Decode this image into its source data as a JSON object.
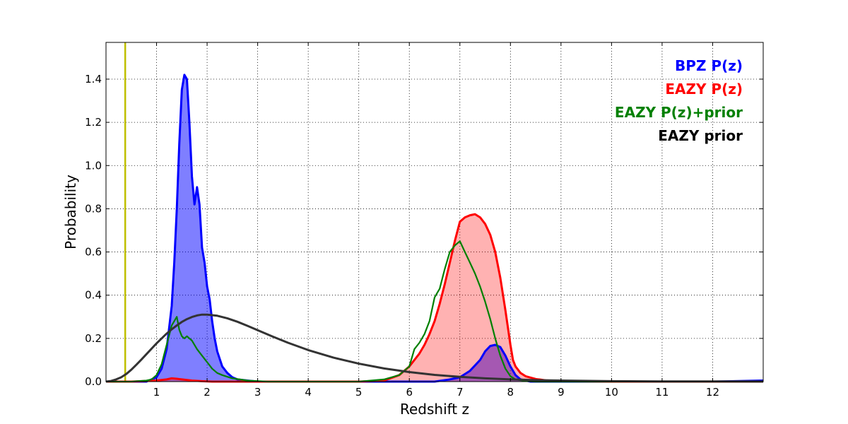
{
  "chart_data": {
    "type": "line",
    "xlabel": "Redshift z",
    "ylabel": "Probability",
    "xlim": [
      0,
      13
    ],
    "ylim": [
      0,
      1.57
    ],
    "grid": true,
    "grid_style": "dotted",
    "legend_placement": "top-right",
    "x_ticks": [
      1,
      2,
      3,
      4,
      5,
      6,
      7,
      8,
      9,
      10,
      11,
      12
    ],
    "x_tick_labels": [
      "1",
      "2",
      "3",
      "4",
      "5",
      "6",
      "7",
      "8",
      "9",
      "10",
      "11",
      "12"
    ],
    "y_ticks": [
      0.0,
      0.2,
      0.4,
      0.6,
      0.8,
      1.0,
      1.2,
      1.4
    ],
    "y_tick_labels": [
      "0.0",
      "0.2",
      "0.4",
      "0.6",
      "0.8",
      "1.0",
      "1.2",
      "1.4"
    ],
    "vertical_line": {
      "x": 0.38,
      "color": "#bfbf00"
    },
    "series": [
      {
        "name": "BPZ P(z)",
        "color": "#0000ff",
        "fill": "#0000ff",
        "fill_opacity": 0.5,
        "line_width": 3,
        "x": [
          0,
          0.8,
          1.0,
          1.1,
          1.2,
          1.3,
          1.35,
          1.4,
          1.45,
          1.5,
          1.55,
          1.6,
          1.65,
          1.7,
          1.75,
          1.8,
          1.85,
          1.9,
          1.95,
          2.0,
          2.05,
          2.1,
          2.15,
          2.2,
          2.3,
          2.4,
          2.5,
          2.6,
          2.8,
          3.0,
          4.0,
          5.0,
          6.0,
          6.5,
          6.8,
          7.0,
          7.2,
          7.4,
          7.5,
          7.6,
          7.7,
          7.8,
          7.9,
          8.0,
          8.1,
          8.2,
          8.4,
          9.0,
          11.0,
          12.0,
          13.0
        ],
        "y": [
          0,
          0.0,
          0.02,
          0.06,
          0.15,
          0.35,
          0.55,
          0.8,
          1.1,
          1.35,
          1.42,
          1.4,
          1.2,
          0.95,
          0.82,
          0.9,
          0.82,
          0.62,
          0.55,
          0.44,
          0.38,
          0.28,
          0.2,
          0.14,
          0.07,
          0.04,
          0.02,
          0.01,
          0.005,
          0,
          0,
          0,
          0.0,
          0.0,
          0.01,
          0.02,
          0.05,
          0.1,
          0.14,
          0.165,
          0.17,
          0.16,
          0.12,
          0.07,
          0.03,
          0.01,
          0.0,
          0,
          0,
          0,
          0.005
        ]
      },
      {
        "name": "EAZY P(z)",
        "color": "#ff0000",
        "fill": "#ff0000",
        "fill_opacity": 0.3,
        "line_width": 3,
        "x": [
          0,
          0.5,
          1.0,
          1.2,
          1.3,
          1.4,
          1.5,
          1.7,
          1.9,
          2.1,
          2.3,
          2.6,
          3.0,
          4.0,
          5.0,
          5.5,
          5.8,
          6.0,
          6.1,
          6.2,
          6.3,
          6.4,
          6.5,
          6.6,
          6.7,
          6.8,
          6.9,
          7.0,
          7.1,
          7.2,
          7.3,
          7.4,
          7.5,
          7.6,
          7.7,
          7.8,
          7.9,
          8.0,
          8.05,
          8.1,
          8.2,
          8.3,
          8.5,
          8.7,
          9.0,
          10.0,
          13.0
        ],
        "y": [
          0,
          0,
          0.005,
          0.01,
          0.015,
          0.013,
          0.01,
          0.005,
          0.002,
          0,
          0,
          0,
          0,
          0,
          0,
          0.005,
          0.03,
          0.07,
          0.1,
          0.13,
          0.17,
          0.22,
          0.28,
          0.36,
          0.45,
          0.55,
          0.65,
          0.74,
          0.76,
          0.77,
          0.775,
          0.76,
          0.73,
          0.68,
          0.6,
          0.48,
          0.33,
          0.17,
          0.1,
          0.07,
          0.04,
          0.025,
          0.012,
          0.006,
          0.002,
          0,
          0
        ]
      },
      {
        "name": "EAZY P(z)+prior",
        "color": "#008000",
        "fill": null,
        "line_width": 2.2,
        "x": [
          0,
          0.5,
          0.8,
          0.9,
          1.0,
          1.1,
          1.2,
          1.3,
          1.35,
          1.4,
          1.45,
          1.5,
          1.55,
          1.6,
          1.65,
          1.7,
          1.75,
          1.8,
          1.9,
          2.0,
          2.1,
          2.2,
          2.3,
          2.5,
          2.8,
          3.2,
          4.0,
          5.0,
          5.5,
          5.8,
          6.0,
          6.1,
          6.2,
          6.3,
          6.4,
          6.5,
          6.6,
          6.7,
          6.8,
          6.9,
          7.0,
          7.1,
          7.2,
          7.3,
          7.4,
          7.5,
          7.6,
          7.7,
          7.8,
          7.9,
          8.0,
          8.1,
          8.3,
          8.5,
          9.0,
          13.0
        ],
        "y": [
          0,
          0,
          0.005,
          0.01,
          0.03,
          0.08,
          0.17,
          0.26,
          0.28,
          0.3,
          0.24,
          0.21,
          0.2,
          0.21,
          0.2,
          0.19,
          0.17,
          0.15,
          0.12,
          0.09,
          0.06,
          0.04,
          0.03,
          0.015,
          0.005,
          0,
          0,
          0,
          0.01,
          0.03,
          0.07,
          0.15,
          0.18,
          0.22,
          0.28,
          0.39,
          0.43,
          0.52,
          0.6,
          0.63,
          0.65,
          0.6,
          0.55,
          0.5,
          0.44,
          0.37,
          0.29,
          0.2,
          0.12,
          0.06,
          0.025,
          0.01,
          0.003,
          0,
          0,
          0
        ]
      },
      {
        "name": "EAZY prior",
        "color": "#333333",
        "fill": null,
        "line_width": 3,
        "x": [
          0,
          0.1,
          0.2,
          0.3,
          0.4,
          0.5,
          0.6,
          0.7,
          0.8,
          0.9,
          1.0,
          1.1,
          1.2,
          1.3,
          1.4,
          1.5,
          1.6,
          1.7,
          1.8,
          1.9,
          2.0,
          2.2,
          2.4,
          2.6,
          2.8,
          3.0,
          3.3,
          3.6,
          4.0,
          4.5,
          5.0,
          5.5,
          6.0,
          6.5,
          7.0,
          7.5,
          8.0,
          8.5,
          9.0,
          10.0,
          11.0,
          12.0,
          13.0
        ],
        "y": [
          0.0,
          0.003,
          0.01,
          0.02,
          0.035,
          0.055,
          0.078,
          0.102,
          0.127,
          0.152,
          0.177,
          0.2,
          0.222,
          0.242,
          0.26,
          0.276,
          0.289,
          0.299,
          0.306,
          0.31,
          0.31,
          0.305,
          0.293,
          0.277,
          0.258,
          0.238,
          0.208,
          0.18,
          0.146,
          0.111,
          0.083,
          0.061,
          0.044,
          0.031,
          0.022,
          0.015,
          0.01,
          0.007,
          0.005,
          0.002,
          0.001,
          0.0005,
          0.0002
        ]
      }
    ],
    "legend": [
      {
        "label": "BPZ P(z)",
        "color": "#0000ff"
      },
      {
        "label": "EAZY P(z)",
        "color": "#ff0000"
      },
      {
        "label": "EAZY P(z)+prior",
        "color": "#008000"
      },
      {
        "label": "EAZY prior",
        "color": "#000000"
      }
    ]
  }
}
